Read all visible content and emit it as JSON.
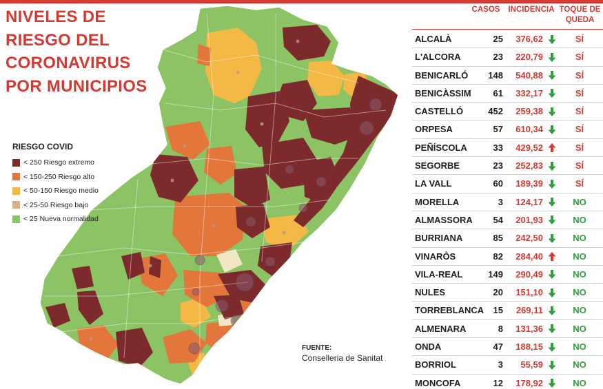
{
  "title": [
    "NIVELES DE",
    "RIESGO DEL",
    "CORONAVIRUS",
    "POR MUNICIPIOS"
  ],
  "legend": {
    "title": "RIESGO COVID",
    "items": [
      {
        "label": "< 250 Riesgo extremo",
        "color": "#7c2a2c"
      },
      {
        "label": "< 150-250 Riesgo alto",
        "color": "#e3763a"
      },
      {
        "label": "< 50-150 Riesgo medio",
        "color": "#f3b845"
      },
      {
        "label": "< 25-50 Riesgo bajo",
        "color": "#d9b08c"
      },
      {
        "label": "< 25 Nueva normalidad",
        "color": "#8cc365"
      }
    ]
  },
  "source": {
    "label": "FUENTE:",
    "text": "Conselleria de Sanitat"
  },
  "table": {
    "headers": {
      "casos": "CASOS",
      "incidencia": "INCIDENCIA",
      "toque": [
        "TOQUE DE",
        "QUEDA"
      ]
    },
    "colors": {
      "accent": "#d43a32",
      "yes": "#d43a32",
      "no": "#2e9e3e",
      "down_arrow": "#2e9e3e",
      "up_arrow": "#d43a32"
    },
    "rows": [
      {
        "municipio": "ALCALÀ",
        "casos": "25",
        "incidencia": "376,62",
        "trend": "down",
        "toque": "SÍ"
      },
      {
        "municipio": "L'ALCORA",
        "casos": "23",
        "incidencia": "220,79",
        "trend": "down",
        "toque": "SÍ"
      },
      {
        "municipio": "BENICARLÓ",
        "casos": "148",
        "incidencia": "540,88",
        "trend": "down",
        "toque": "SÍ"
      },
      {
        "municipio": "BENICÀSSIM",
        "casos": "61",
        "incidencia": "332,17",
        "trend": "down",
        "toque": "SÍ"
      },
      {
        "municipio": "CASTELLÓ",
        "casos": "452",
        "incidencia": "259,38",
        "trend": "down",
        "toque": "SÍ"
      },
      {
        "municipio": "ORPESA",
        "casos": "57",
        "incidencia": "610,34",
        "trend": "down",
        "toque": "SÍ"
      },
      {
        "municipio": "PEÑÍSCOLA",
        "casos": "33",
        "incidencia": "429,52",
        "trend": "up",
        "toque": "SÍ"
      },
      {
        "municipio": "SEGORBE",
        "casos": "23",
        "incidencia": "252,83",
        "trend": "down",
        "toque": "SÍ"
      },
      {
        "municipio": "LA VALL",
        "casos": "60",
        "incidencia": "189,39",
        "trend": "down",
        "toque": "SÍ"
      },
      {
        "municipio": "MORELLA",
        "casos": "3",
        "incidencia": "124,17",
        "trend": "down",
        "toque": "NO"
      },
      {
        "municipio": "ALMASSORA",
        "casos": "54",
        "incidencia": "201,93",
        "trend": "down",
        "toque": "NO"
      },
      {
        "municipio": "BURRIANA",
        "casos": "85",
        "incidencia": "242,50",
        "trend": "down",
        "toque": "NO"
      },
      {
        "municipio": "VINARÒS",
        "casos": "82",
        "incidencia": "284,40",
        "trend": "up",
        "toque": "NO"
      },
      {
        "municipio": "VILA-REAL",
        "casos": "149",
        "incidencia": "290,49",
        "trend": "down",
        "toque": "NO"
      },
      {
        "municipio": "NULES",
        "casos": "20",
        "incidencia": "151,10",
        "trend": "down",
        "toque": "NO"
      },
      {
        "municipio": "TORREBLANCA",
        "casos": "15",
        "incidencia": "269,11",
        "trend": "down",
        "toque": "NO"
      },
      {
        "municipio": "ALMENARA",
        "casos": "8",
        "incidencia": "131,36",
        "trend": "down",
        "toque": "NO"
      },
      {
        "municipio": "ONDA",
        "casos": "47",
        "incidencia": "188,15",
        "trend": "down",
        "toque": "NO"
      },
      {
        "municipio": "BORRIOL",
        "casos": "3",
        "incidencia": "55,59",
        "trend": "down",
        "toque": "NO"
      },
      {
        "municipio": "MONCOFA",
        "casos": "12",
        "incidencia": "178,92",
        "trend": "down",
        "toque": "NO"
      }
    ]
  }
}
